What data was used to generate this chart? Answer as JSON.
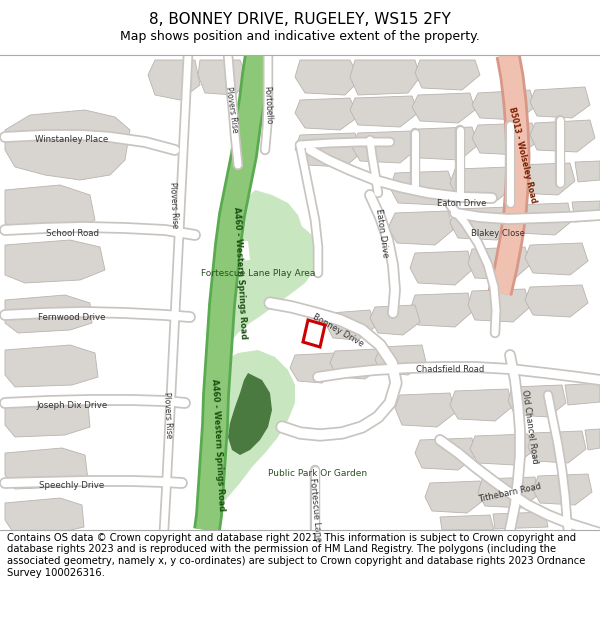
{
  "title": "8, BONNEY DRIVE, RUGELEY, WS15 2FY",
  "subtitle": "Map shows position and indicative extent of the property.",
  "footer": "Contains OS data © Crown copyright and database right 2021. This information is subject to Crown copyright and database rights 2023 and is reproduced with the permission of HM Land Registry. The polygons (including the associated geometry, namely x, y co-ordinates) are subject to Crown copyright and database rights 2023 Ordnance Survey 100026316.",
  "map_bg": "#f0eeea",
  "road_fill": "#ffffff",
  "road_edge": "#c8c4c0",
  "building_fill": "#d8d4cf",
  "building_edge": "#b8b4b0",
  "green_light": "#c8e6c0",
  "green_medium": "#8dc878",
  "green_dark": "#4a7a40",
  "salmon_light": "#f0c0b0",
  "salmon_edge": "#d89080",
  "property_red": "#cc0000",
  "label_color": "#333333",
  "green_label": "#2a5020",
  "a460_label": "#1a5010",
  "b5013_label": "#7a2000",
  "title_size": 11,
  "subtitle_size": 9,
  "footer_size": 7.2
}
